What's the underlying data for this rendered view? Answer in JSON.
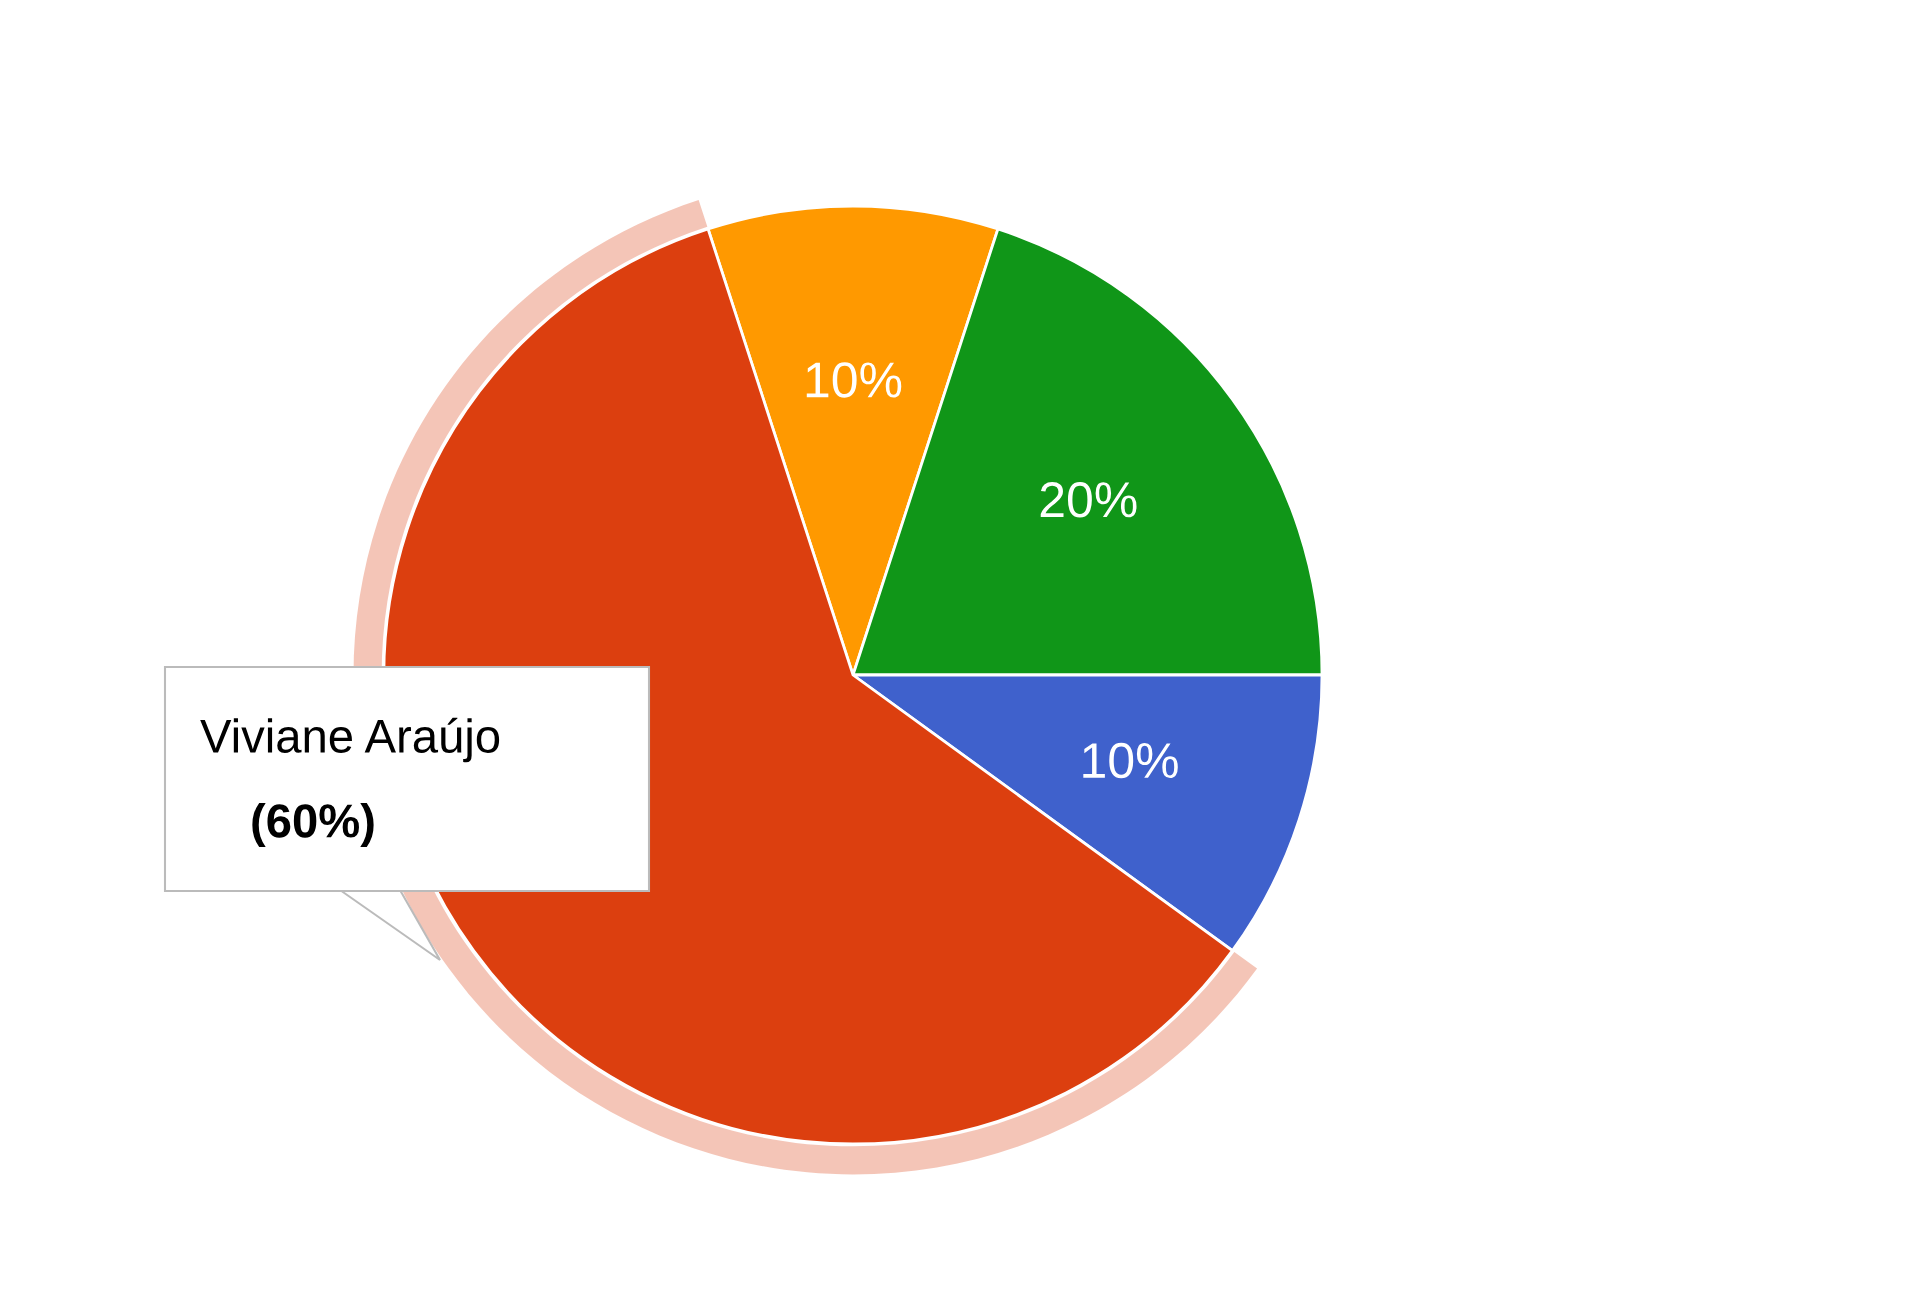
{
  "chart_data": {
    "type": "pie",
    "categories": [
      null,
      null,
      null,
      "Viviane Araújo"
    ],
    "values": [
      10,
      20,
      10,
      60
    ],
    "colors": [
      "#ff9900",
      "#109618",
      "#3f61cc",
      "#dc3f0f"
    ],
    "value_labels": [
      "10%",
      "20%",
      "10%",
      null
    ],
    "annotations": [
      "(60%)"
    ]
  }
}
